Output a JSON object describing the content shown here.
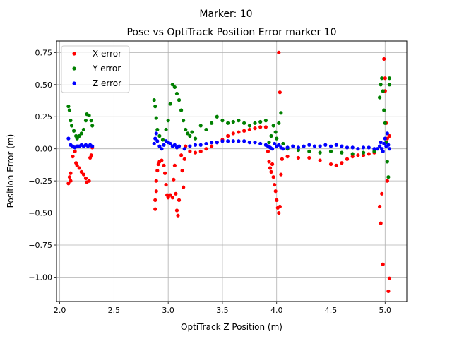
{
  "figure": {
    "suptitle": "Marker: 10",
    "title": "Pose vs OptiTrack Position Error marker 10"
  },
  "chart_data": {
    "type": "scatter",
    "title": "Pose vs OptiTrack Position Error marker 10",
    "xlabel": "OptiTrack Z Position (m)",
    "ylabel": "Position Error (m)",
    "xlim": [
      1.97,
      5.2
    ],
    "ylim": [
      -1.19,
      0.84
    ],
    "xticks": [
      "2.0",
      "2.5",
      "3.0",
      "3.5",
      "4.0",
      "4.5",
      "5.0"
    ],
    "yticks": [
      "−1.00",
      "−0.75",
      "−0.50",
      "−0.25",
      "0.00",
      "0.25",
      "0.50",
      "0.75"
    ],
    "grid": true,
    "legend_position": "upper left",
    "series": [
      {
        "name": "X error",
        "color": "#ff0000",
        "points": [
          [
            2.08,
            -0.27
          ],
          [
            2.09,
            -0.22
          ],
          [
            2.1,
            -0.19
          ],
          [
            2.1,
            -0.25
          ],
          [
            2.12,
            -0.06
          ],
          [
            2.14,
            -0.02
          ],
          [
            2.15,
            -0.11
          ],
          [
            2.16,
            -0.13
          ],
          [
            2.18,
            -0.15
          ],
          [
            2.2,
            -0.18
          ],
          [
            2.22,
            -0.2
          ],
          [
            2.24,
            -0.23
          ],
          [
            2.25,
            -0.26
          ],
          [
            2.27,
            -0.25
          ],
          [
            2.28,
            -0.07
          ],
          [
            2.29,
            -0.05
          ],
          [
            2.3,
            0.01
          ],
          [
            2.88,
            -0.47
          ],
          [
            2.88,
            -0.4
          ],
          [
            2.89,
            -0.33
          ],
          [
            2.89,
            -0.25
          ],
          [
            2.9,
            -0.17
          ],
          [
            2.91,
            -0.12
          ],
          [
            2.92,
            -0.1
          ],
          [
            2.94,
            -0.09
          ],
          [
            2.96,
            -0.13
          ],
          [
            2.97,
            -0.19
          ],
          [
            2.98,
            -0.28
          ],
          [
            2.99,
            -0.36
          ],
          [
            3.0,
            -0.38
          ],
          [
            3.02,
            -0.36
          ],
          [
            3.04,
            -0.38
          ],
          [
            3.05,
            -0.24
          ],
          [
            3.06,
            -0.13
          ],
          [
            3.07,
            -0.35
          ],
          [
            3.08,
            -0.48
          ],
          [
            3.09,
            -0.52
          ],
          [
            3.1,
            -0.4
          ],
          [
            3.12,
            -0.05
          ],
          [
            3.13,
            -0.17
          ],
          [
            3.14,
            -0.3
          ],
          [
            3.15,
            -0.08
          ],
          [
            3.16,
            0.02
          ],
          [
            3.2,
            -0.02
          ],
          [
            3.25,
            -0.03
          ],
          [
            3.3,
            -0.02
          ],
          [
            3.35,
            0.0
          ],
          [
            3.4,
            0.02
          ],
          [
            3.45,
            0.05
          ],
          [
            3.5,
            0.07
          ],
          [
            3.55,
            0.1
          ],
          [
            3.6,
            0.12
          ],
          [
            3.65,
            0.13
          ],
          [
            3.7,
            0.14
          ],
          [
            3.75,
            0.15
          ],
          [
            3.8,
            0.16
          ],
          [
            3.85,
            0.17
          ],
          [
            3.9,
            0.17
          ],
          [
            3.92,
            -0.02
          ],
          [
            3.93,
            -0.1
          ],
          [
            3.94,
            -0.15
          ],
          [
            3.95,
            -0.18
          ],
          [
            3.96,
            -0.12
          ],
          [
            3.97,
            -0.22
          ],
          [
            3.98,
            -0.28
          ],
          [
            3.99,
            -0.33
          ],
          [
            4.0,
            -0.4
          ],
          [
            4.01,
            -0.46
          ],
          [
            4.02,
            0.75
          ],
          [
            4.02,
            -0.5
          ],
          [
            4.03,
            -0.45
          ],
          [
            4.03,
            0.44
          ],
          [
            4.04,
            -0.2
          ],
          [
            4.05,
            -0.08
          ],
          [
            4.1,
            -0.06
          ],
          [
            4.2,
            -0.07
          ],
          [
            4.3,
            -0.07
          ],
          [
            4.4,
            -0.09
          ],
          [
            4.5,
            -0.12
          ],
          [
            4.55,
            -0.13
          ],
          [
            4.6,
            -0.11
          ],
          [
            4.65,
            -0.08
          ],
          [
            4.7,
            -0.06
          ],
          [
            4.75,
            -0.05
          ],
          [
            4.8,
            -0.05
          ],
          [
            4.85,
            -0.04
          ],
          [
            4.9,
            -0.03
          ],
          [
            4.95,
            -0.45
          ],
          [
            4.96,
            -0.58
          ],
          [
            4.97,
            -0.35
          ],
          [
            4.98,
            -0.9
          ],
          [
            4.99,
            0.7
          ],
          [
            5.0,
            0.55
          ],
          [
            5.0,
            0.45
          ],
          [
            5.01,
            0.2
          ],
          [
            5.02,
            -0.25
          ],
          [
            5.02,
            0.08
          ],
          [
            5.03,
            -1.11
          ],
          [
            5.04,
            -1.01
          ],
          [
            5.04,
            0.1
          ]
        ]
      },
      {
        "name": "Y error",
        "color": "#008000",
        "points": [
          [
            2.08,
            0.33
          ],
          [
            2.09,
            0.3
          ],
          [
            2.1,
            0.22
          ],
          [
            2.11,
            0.18
          ],
          [
            2.13,
            0.14
          ],
          [
            2.15,
            0.1
          ],
          [
            2.16,
            0.08
          ],
          [
            2.18,
            0.1
          ],
          [
            2.2,
            0.12
          ],
          [
            2.22,
            0.15
          ],
          [
            2.24,
            0.22
          ],
          [
            2.25,
            0.27
          ],
          [
            2.27,
            0.26
          ],
          [
            2.29,
            0.22
          ],
          [
            2.3,
            0.18
          ],
          [
            2.87,
            0.38
          ],
          [
            2.88,
            0.33
          ],
          [
            2.89,
            0.24
          ],
          [
            2.9,
            0.15
          ],
          [
            2.92,
            0.1
          ],
          [
            2.95,
            0.07
          ],
          [
            2.98,
            0.15
          ],
          [
            3.0,
            0.22
          ],
          [
            3.02,
            0.35
          ],
          [
            3.04,
            0.5
          ],
          [
            3.06,
            0.48
          ],
          [
            3.08,
            0.43
          ],
          [
            3.1,
            0.38
          ],
          [
            3.12,
            0.3
          ],
          [
            3.14,
            0.22
          ],
          [
            3.16,
            0.15
          ],
          [
            3.18,
            0.12
          ],
          [
            3.2,
            0.1
          ],
          [
            3.22,
            0.13
          ],
          [
            3.25,
            0.08
          ],
          [
            3.3,
            0.18
          ],
          [
            3.35,
            0.15
          ],
          [
            3.4,
            0.2
          ],
          [
            3.45,
            0.25
          ],
          [
            3.5,
            0.22
          ],
          [
            3.55,
            0.2
          ],
          [
            3.6,
            0.21
          ],
          [
            3.65,
            0.22
          ],
          [
            3.7,
            0.2
          ],
          [
            3.75,
            0.18
          ],
          [
            3.8,
            0.2
          ],
          [
            3.85,
            0.21
          ],
          [
            3.9,
            0.22
          ],
          [
            3.93,
            0.05
          ],
          [
            3.95,
            0.1
          ],
          [
            3.97,
            0.18
          ],
          [
            3.99,
            0.13
          ],
          [
            4.0,
            0.08
          ],
          [
            4.02,
            0.2
          ],
          [
            4.04,
            0.28
          ],
          [
            4.06,
            0.04
          ],
          [
            4.1,
            0.0
          ],
          [
            4.2,
            -0.01
          ],
          [
            4.3,
            -0.02
          ],
          [
            4.4,
            -0.03
          ],
          [
            4.5,
            -0.02
          ],
          [
            4.6,
            -0.03
          ],
          [
            4.7,
            -0.04
          ],
          [
            4.8,
            -0.03
          ],
          [
            4.9,
            -0.02
          ],
          [
            4.95,
            0.4
          ],
          [
            4.96,
            0.5
          ],
          [
            4.97,
            0.55
          ],
          [
            4.98,
            0.45
          ],
          [
            4.99,
            0.3
          ],
          [
            5.0,
            0.2
          ],
          [
            5.01,
            0.05
          ],
          [
            5.02,
            -0.1
          ],
          [
            5.03,
            -0.22
          ],
          [
            5.04,
            0.5
          ],
          [
            5.04,
            0.55
          ]
        ]
      },
      {
        "name": "Z error",
        "color": "#0000ff",
        "points": [
          [
            2.08,
            0.08
          ],
          [
            2.1,
            0.03
          ],
          [
            2.12,
            0.02
          ],
          [
            2.14,
            0.01
          ],
          [
            2.16,
            0.02
          ],
          [
            2.18,
            0.02
          ],
          [
            2.2,
            0.03
          ],
          [
            2.22,
            0.02
          ],
          [
            2.24,
            0.03
          ],
          [
            2.26,
            0.02
          ],
          [
            2.28,
            0.03
          ],
          [
            2.3,
            0.02
          ],
          [
            2.87,
            0.04
          ],
          [
            2.88,
            0.08
          ],
          [
            2.89,
            0.12
          ],
          [
            2.9,
            0.06
          ],
          [
            2.92,
            0.02
          ],
          [
            2.94,
            0.0
          ],
          [
            2.96,
            0.03
          ],
          [
            2.98,
            0.06
          ],
          [
            3.0,
            0.05
          ],
          [
            3.02,
            0.04
          ],
          [
            3.04,
            0.02
          ],
          [
            3.06,
            0.03
          ],
          [
            3.08,
            0.01
          ],
          [
            3.1,
            0.02
          ],
          [
            3.15,
            0.0
          ],
          [
            3.2,
            0.02
          ],
          [
            3.25,
            0.03
          ],
          [
            3.3,
            0.03
          ],
          [
            3.35,
            0.04
          ],
          [
            3.4,
            0.05
          ],
          [
            3.45,
            0.05
          ],
          [
            3.5,
            0.06
          ],
          [
            3.55,
            0.06
          ],
          [
            3.6,
            0.06
          ],
          [
            3.65,
            0.06
          ],
          [
            3.7,
            0.06
          ],
          [
            3.75,
            0.05
          ],
          [
            3.8,
            0.05
          ],
          [
            3.85,
            0.04
          ],
          [
            3.9,
            0.03
          ],
          [
            3.92,
            0.02
          ],
          [
            3.94,
            0.01
          ],
          [
            3.96,
            0.0
          ],
          [
            3.98,
            0.04
          ],
          [
            4.0,
            0.02
          ],
          [
            4.02,
            0.03
          ],
          [
            4.04,
            0.01
          ],
          [
            4.06,
            0.0
          ],
          [
            4.1,
            0.01
          ],
          [
            4.15,
            0.02
          ],
          [
            4.2,
            0.01
          ],
          [
            4.25,
            0.02
          ],
          [
            4.3,
            0.03
          ],
          [
            4.35,
            0.02
          ],
          [
            4.4,
            0.02
          ],
          [
            4.45,
            0.03
          ],
          [
            4.5,
            0.02
          ],
          [
            4.55,
            0.03
          ],
          [
            4.6,
            0.02
          ],
          [
            4.65,
            0.01
          ],
          [
            4.7,
            0.01
          ],
          [
            4.75,
            0.0
          ],
          [
            4.8,
            0.01
          ],
          [
            4.85,
            0.01
          ],
          [
            4.9,
            0.0
          ],
          [
            4.93,
            0.0
          ],
          [
            4.95,
            0.02
          ],
          [
            4.96,
            0.05
          ],
          [
            4.97,
            0.0
          ],
          [
            4.98,
            -0.02
          ],
          [
            4.99,
            0.04
          ],
          [
            5.0,
            0.08
          ],
          [
            5.01,
            0.02
          ],
          [
            5.02,
            0.12
          ],
          [
            5.03,
            0.03
          ],
          [
            5.04,
            0.0
          ]
        ]
      }
    ]
  }
}
